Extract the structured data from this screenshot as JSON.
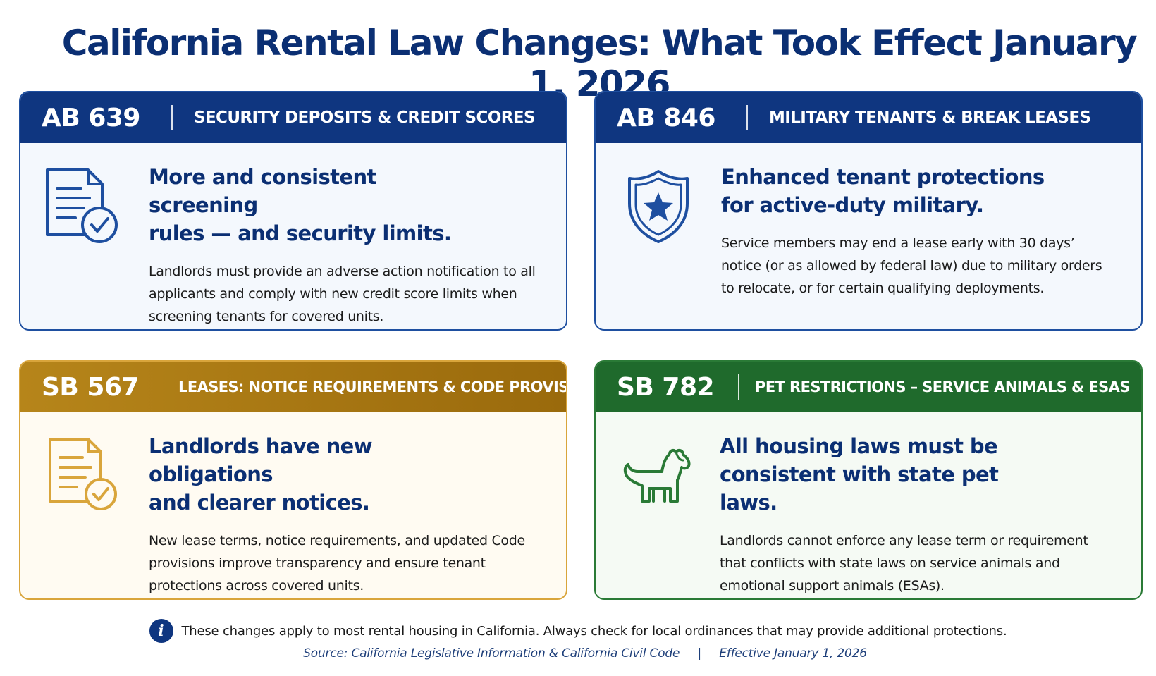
{
  "title": "California Rental Law Changes: What Took Effect January 1, 2026",
  "cards": [
    {
      "code": "AB 639",
      "subject": "SECURITY DEPOSITS & CREDIT SCORES",
      "headline_line1": "More and consistent screening",
      "headline_line2": "rules — and security limits.",
      "description": "Landlords must provide an adverse action notification to all applicants and comply with new credit score limits when screening tenants for covered units.",
      "icon": "document-check-icon",
      "color": "#0f3680"
    },
    {
      "code": "AB 846",
      "subject": "MILITARY TENANTS & BREAK LEASES",
      "headline_line1": "Enhanced tenant protections",
      "headline_line2": "for active-duty military.",
      "description": "Service members may end a lease early with 30 days’ notice (or as allowed by federal law) due to military orders to relocate, or for certain qualifying deployments.",
      "icon": "shield-star-icon",
      "color": "#0f3680"
    },
    {
      "code": "SB 567",
      "subject": "LEASES: NOTICE REQUIREMENTS & CODE PROVISIONS",
      "headline_line1": "Landlords have new obligations",
      "headline_line2": "and clearer notices.",
      "description": "New lease terms, notice requirements, and updated Code provisions improve transparency and ensure tenant protections across covered units.",
      "icon": "document-check-icon",
      "color": "#b6851a"
    },
    {
      "code": "SB 782",
      "subject": "PET RESTRICTIONS – SERVICE ANIMALS & ESAS",
      "headline_line1": "All housing laws must be",
      "headline_line2": "consistent with state pet laws.",
      "description": "Landlords cannot enforce any lease term or requirement that conflicts with state laws on service animals and emotional support animals (ESAs).",
      "icon": "dog-icon",
      "color": "#1f6a2c"
    }
  ],
  "footer": {
    "note": "These changes apply to most rental housing in California. Always check for local ordinances that may provide additional protections.",
    "info_glyph": "i",
    "source": "Source: California Legislative Information & California Civil Code",
    "separator": "|",
    "effective": "Effective January 1, 2026"
  }
}
